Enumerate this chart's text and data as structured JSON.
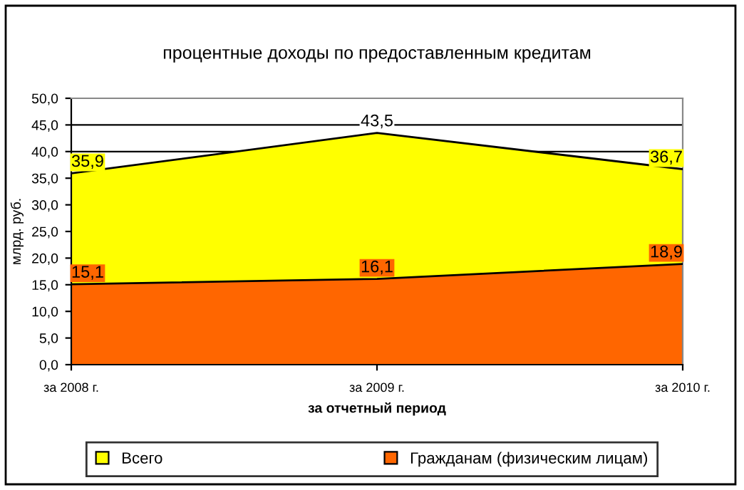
{
  "chart_data": {
    "type": "area",
    "title": "процентные доходы по предоставленным кредитам",
    "xlabel": "за отчетный период",
    "ylabel": "млрд. руб.",
    "categories": [
      "за 2008 г.",
      "за 2009 г.",
      "за 2010 г."
    ],
    "series": [
      {
        "name": "Всего",
        "color": "#ffff00",
        "values": [
          35.9,
          43.5,
          36.7
        ],
        "value_labels": [
          "35,9",
          "43,5",
          "36,7"
        ]
      },
      {
        "name": "Гражданам (физическим лицам)",
        "color": "#ff6600",
        "values": [
          15.1,
          16.1,
          18.9
        ],
        "value_labels": [
          "15,1",
          "16,1",
          "18,9"
        ]
      }
    ],
    "ylim": [
      0,
      50
    ],
    "yticks": [
      {
        "value": 0,
        "label": "0,0"
      },
      {
        "value": 5,
        "label": "5,0"
      },
      {
        "value": 10,
        "label": "10,0"
      },
      {
        "value": 15,
        "label": "15,0"
      },
      {
        "value": 20,
        "label": "20,0"
      },
      {
        "value": 25,
        "label": "25,0"
      },
      {
        "value": 30,
        "label": "30,0"
      },
      {
        "value": 35,
        "label": "35,0"
      },
      {
        "value": 40,
        "label": "40,0"
      },
      {
        "value": 45,
        "label": "45,0"
      },
      {
        "value": 50,
        "label": "50,0"
      }
    ],
    "grid": "y",
    "legend": "bottom"
  }
}
